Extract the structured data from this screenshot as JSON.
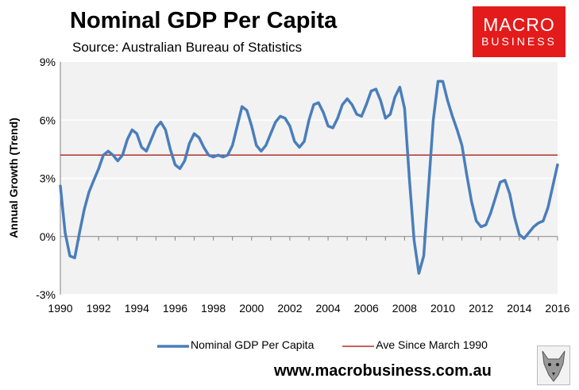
{
  "header": {
    "title": "Nominal GDP Per Capita",
    "subtitle": "Source: Australian Bureau of Statistics"
  },
  "logo": {
    "line1": "MACRO",
    "line2": "BUSINESS",
    "bg_color": "#e31b1b"
  },
  "footer": {
    "url": "www.macrobusiness.com.au",
    "wolf_icon": "wolf-head-icon"
  },
  "colors": {
    "series": "#4a7ebb",
    "average": "#b0302c",
    "plot_bg": "#f2f2f2",
    "grid": "#ffffff"
  },
  "chart_data": {
    "type": "line",
    "title": "Nominal GDP Per Capita",
    "ylabel": "Annual Growth (Trend)",
    "xlabel": "",
    "xlim": [
      1990,
      2016
    ],
    "ylim": [
      -3,
      9
    ],
    "yticks": [
      -3,
      0,
      3,
      6,
      9
    ],
    "ytick_labels": [
      "-3%",
      "0%",
      "3%",
      "6%",
      "9%"
    ],
    "xticks": [
      1990,
      1992,
      1994,
      1996,
      1998,
      2000,
      2002,
      2004,
      2006,
      2008,
      2010,
      2012,
      2014,
      2016
    ],
    "xtick_labels": [
      "1990",
      "1992",
      "1994",
      "1996",
      "1998",
      "2000",
      "2002",
      "2004",
      "2006",
      "2008",
      "2010",
      "2012",
      "2014",
      "2016"
    ],
    "grid": true,
    "legend_position": "bottom",
    "series": [
      {
        "name": "Nominal GDP Per Capita",
        "color": "#4a7ebb",
        "points": [
          [
            1990.0,
            2.6
          ],
          [
            1990.25,
            0.2
          ],
          [
            1990.5,
            -1.0
          ],
          [
            1990.75,
            -1.1
          ],
          [
            1991.0,
            0.2
          ],
          [
            1991.25,
            1.4
          ],
          [
            1991.5,
            2.3
          ],
          [
            1991.75,
            2.9
          ],
          [
            1992.0,
            3.5
          ],
          [
            1992.25,
            4.2
          ],
          [
            1992.5,
            4.4
          ],
          [
            1992.75,
            4.2
          ],
          [
            1993.0,
            3.9
          ],
          [
            1993.25,
            4.2
          ],
          [
            1993.5,
            5.0
          ],
          [
            1993.75,
            5.5
          ],
          [
            1994.0,
            5.3
          ],
          [
            1994.25,
            4.6
          ],
          [
            1994.5,
            4.4
          ],
          [
            1994.75,
            5.0
          ],
          [
            1995.0,
            5.6
          ],
          [
            1995.25,
            5.9
          ],
          [
            1995.5,
            5.5
          ],
          [
            1995.75,
            4.5
          ],
          [
            1996.0,
            3.7
          ],
          [
            1996.25,
            3.5
          ],
          [
            1996.5,
            3.9
          ],
          [
            1996.75,
            4.8
          ],
          [
            1997.0,
            5.3
          ],
          [
            1997.25,
            5.1
          ],
          [
            1997.5,
            4.6
          ],
          [
            1997.75,
            4.2
          ],
          [
            1998.0,
            4.1
          ],
          [
            1998.25,
            4.2
          ],
          [
            1998.5,
            4.1
          ],
          [
            1998.75,
            4.2
          ],
          [
            1999.0,
            4.7
          ],
          [
            1999.25,
            5.7
          ],
          [
            1999.5,
            6.7
          ],
          [
            1999.75,
            6.5
          ],
          [
            2000.0,
            5.7
          ],
          [
            2000.25,
            4.7
          ],
          [
            2000.5,
            4.4
          ],
          [
            2000.75,
            4.7
          ],
          [
            2001.0,
            5.3
          ],
          [
            2001.25,
            5.9
          ],
          [
            2001.5,
            6.2
          ],
          [
            2001.75,
            6.1
          ],
          [
            2002.0,
            5.7
          ],
          [
            2002.25,
            4.9
          ],
          [
            2002.5,
            4.6
          ],
          [
            2002.75,
            4.9
          ],
          [
            2003.0,
            6.0
          ],
          [
            2003.25,
            6.8
          ],
          [
            2003.5,
            6.9
          ],
          [
            2003.75,
            6.4
          ],
          [
            2004.0,
            5.7
          ],
          [
            2004.25,
            5.6
          ],
          [
            2004.5,
            6.1
          ],
          [
            2004.75,
            6.8
          ],
          [
            2005.0,
            7.1
          ],
          [
            2005.25,
            6.8
          ],
          [
            2005.5,
            6.3
          ],
          [
            2005.75,
            6.2
          ],
          [
            2006.0,
            6.8
          ],
          [
            2006.25,
            7.5
          ],
          [
            2006.5,
            7.6
          ],
          [
            2006.75,
            7.0
          ],
          [
            2007.0,
            6.1
          ],
          [
            2007.25,
            6.3
          ],
          [
            2007.5,
            7.2
          ],
          [
            2007.75,
            7.7
          ],
          [
            2008.0,
            6.6
          ],
          [
            2008.25,
            3.0
          ],
          [
            2008.5,
            -0.2
          ],
          [
            2008.75,
            -1.9
          ],
          [
            2009.0,
            -1.0
          ],
          [
            2009.25,
            2.5
          ],
          [
            2009.5,
            6.0
          ],
          [
            2009.75,
            8.0
          ],
          [
            2010.0,
            8.0
          ],
          [
            2010.25,
            7.0
          ],
          [
            2010.5,
            6.2
          ],
          [
            2010.75,
            5.5
          ],
          [
            2011.0,
            4.7
          ],
          [
            2011.25,
            3.2
          ],
          [
            2011.5,
            1.8
          ],
          [
            2011.75,
            0.8
          ],
          [
            2012.0,
            0.5
          ],
          [
            2012.25,
            0.6
          ],
          [
            2012.5,
            1.2
          ],
          [
            2012.75,
            2.0
          ],
          [
            2013.0,
            2.8
          ],
          [
            2013.25,
            2.9
          ],
          [
            2013.5,
            2.2
          ],
          [
            2013.75,
            1.0
          ],
          [
            2014.0,
            0.1
          ],
          [
            2014.25,
            -0.1
          ],
          [
            2014.5,
            0.2
          ],
          [
            2014.75,
            0.5
          ],
          [
            2015.0,
            0.7
          ],
          [
            2015.25,
            0.8
          ],
          [
            2015.5,
            1.5
          ],
          [
            2015.75,
            2.6
          ],
          [
            2016.0,
            3.7
          ]
        ]
      },
      {
        "name": "Ave Since March 1990",
        "color": "#b0302c",
        "points": [
          [
            1990,
            4.2
          ],
          [
            2016,
            4.2
          ]
        ]
      }
    ]
  }
}
